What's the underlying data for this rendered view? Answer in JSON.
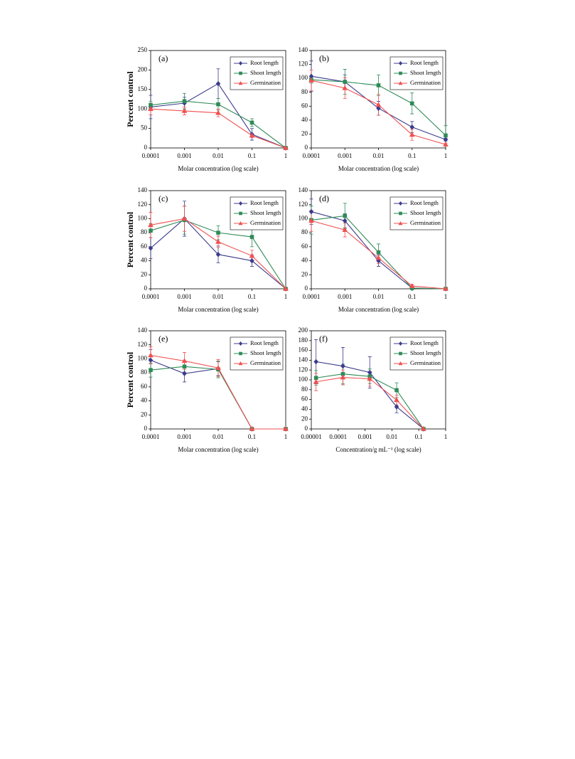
{
  "chart_data": [
    {
      "type": "line",
      "panel_label": "(a)",
      "ylabel": "Percent control",
      "xlabel": "Molar concentration (log scale)",
      "log_x": true,
      "legend": "upper right",
      "x": [
        0.0001,
        0.001,
        0.01,
        0.1,
        1
      ],
      "xlim": [
        0.0001,
        1
      ],
      "xticks": [
        0.0001,
        0.001,
        0.01,
        0.1,
        1
      ],
      "ylim": [
        0,
        250
      ],
      "yticks": [
        0,
        50,
        100,
        150,
        200,
        250
      ],
      "series": [
        {
          "name": "Root length",
          "color": "#3c3c8c",
          "marker": "diamond",
          "values": [
            105,
            115,
            165,
            35,
            0
          ],
          "errors": [
            30,
            15,
            38,
            15,
            0
          ]
        },
        {
          "name": "Shoot length",
          "color": "#2e8b57",
          "marker": "square",
          "values": [
            110,
            120,
            112,
            65,
            0
          ],
          "errors": [
            10,
            20,
            15,
            10,
            0
          ]
        },
        {
          "name": "Germination",
          "color": "#f05050",
          "marker": "triangle",
          "values": [
            100,
            95,
            90,
            32,
            0
          ],
          "errors": [
            15,
            10,
            10,
            5,
            0
          ]
        }
      ]
    },
    {
      "type": "line",
      "panel_label": "(b)",
      "xlabel": "Molar concentration (log scale)",
      "log_x": true,
      "legend": "upper right",
      "x": [
        0.0001,
        0.001,
        0.01,
        0.1,
        1
      ],
      "xlim": [
        0.0001,
        1
      ],
      "xticks": [
        0.0001,
        0.001,
        0.01,
        0.1,
        1
      ],
      "ylim": [
        0,
        140
      ],
      "yticks": [
        0,
        20,
        40,
        60,
        80,
        100,
        120,
        140
      ],
      "series": [
        {
          "name": "Root length",
          "color": "#3c3c8c",
          "marker": "diamond",
          "values": [
            103,
            95,
            57,
            30,
            12
          ],
          "errors": [
            22,
            10,
            10,
            8,
            2
          ]
        },
        {
          "name": "Shoot length",
          "color": "#2e8b57",
          "marker": "square",
          "values": [
            98,
            95,
            90,
            64,
            18
          ],
          "errors": [
            5,
            18,
            15,
            15,
            14
          ]
        },
        {
          "name": "Germination",
          "color": "#f05050",
          "marker": "triangle",
          "values": [
            97,
            86,
            62,
            19,
            5
          ],
          "errors": [
            15,
            15,
            15,
            8,
            2
          ]
        }
      ]
    },
    {
      "type": "line",
      "panel_label": "(c)",
      "ylabel": "Percent control",
      "xlabel": "Molar concentration (log scale)",
      "log_x": true,
      "legend": "upper right",
      "x": [
        0.0001,
        0.001,
        0.01,
        0.1,
        1
      ],
      "xlim": [
        0.0001,
        1
      ],
      "xticks": [
        0.0001,
        0.001,
        0.01,
        0.1,
        1
      ],
      "ylim": [
        0,
        140
      ],
      "yticks": [
        0,
        20,
        40,
        60,
        80,
        100,
        120,
        140
      ],
      "series": [
        {
          "name": "Root length",
          "color": "#3c3c8c",
          "marker": "diamond",
          "values": [
            58,
            100,
            49,
            40,
            0
          ],
          "errors": [
            15,
            25,
            12,
            8,
            0
          ]
        },
        {
          "name": "Shoot length",
          "color": "#2e8b57",
          "marker": "square",
          "values": [
            83,
            98,
            80,
            74,
            0
          ],
          "errors": [
            10,
            20,
            10,
            14,
            0
          ]
        },
        {
          "name": "Germination",
          "color": "#f05050",
          "marker": "triangle",
          "values": [
            91,
            100,
            67,
            47,
            0
          ],
          "errors": [
            18,
            18,
            8,
            8,
            0
          ]
        }
      ]
    },
    {
      "type": "line",
      "panel_label": "(d)",
      "xlabel": "Molar concentration (log scale)",
      "log_x": true,
      "legend": "upper right",
      "x": [
        0.0001,
        0.001,
        0.01,
        0.1,
        1
      ],
      "xlim": [
        0.0001,
        1
      ],
      "xticks": [
        0.0001,
        0.001,
        0.01,
        0.1,
        1
      ],
      "ylim": [
        0,
        140
      ],
      "yticks": [
        0,
        20,
        40,
        60,
        80,
        100,
        120,
        140
      ],
      "series": [
        {
          "name": "Root length",
          "color": "#3c3c8c",
          "marker": "diamond",
          "values": [
            110,
            97,
            40,
            1,
            0
          ],
          "errors": [
            18,
            10,
            8,
            1,
            0
          ]
        },
        {
          "name": "Shoot length",
          "color": "#2e8b57",
          "marker": "square",
          "values": [
            98,
            104,
            52,
            1,
            0
          ],
          "errors": [
            20,
            18,
            12,
            1,
            0
          ]
        },
        {
          "name": "Germination",
          "color": "#f05050",
          "marker": "triangle",
          "values": [
            97,
            84,
            44,
            4,
            0
          ],
          "errors": [
            15,
            10,
            8,
            2,
            0
          ]
        }
      ]
    },
    {
      "type": "line",
      "panel_label": "(e)",
      "ylabel": "Percent control",
      "xlabel": "Molar concentration (log scale)",
      "log_x": true,
      "legend": "upper right",
      "x": [
        0.0001,
        0.001,
        0.01,
        0.1,
        1
      ],
      "xlim": [
        0.0001,
        1
      ],
      "xticks": [
        0.0001,
        0.001,
        0.01,
        0.1,
        1
      ],
      "ylim": [
        0,
        140
      ],
      "yticks": [
        0,
        20,
        40,
        60,
        80,
        100,
        120,
        140
      ],
      "series": [
        {
          "name": "Root length",
          "color": "#3c3c8c",
          "marker": "diamond",
          "values": [
            98,
            79,
            86,
            0,
            0
          ],
          "errors": [
            15,
            12,
            10,
            0,
            0
          ]
        },
        {
          "name": "Shoot length",
          "color": "#2e8b57",
          "marker": "square",
          "values": [
            84,
            89,
            85,
            0,
            0
          ],
          "errors": [
            10,
            8,
            12,
            0,
            0
          ]
        },
        {
          "name": "Germination",
          "color": "#f05050",
          "marker": "triangle",
          "values": [
            105,
            97,
            87,
            0,
            0
          ],
          "errors": [
            12,
            12,
            12,
            0,
            0
          ]
        }
      ]
    },
    {
      "type": "line",
      "panel_label": "(f)",
      "xlabel": "Concentration/g mL⁻¹ (log scale)",
      "log_x": true,
      "legend": "upper right",
      "x": [
        1.5e-05,
        0.00015,
        0.0015,
        0.015,
        0.15
      ],
      "xlim": [
        1e-05,
        1
      ],
      "xticks": [
        1e-05,
        0.0001,
        0.001,
        0.01,
        0.1,
        1
      ],
      "ylim": [
        0,
        200
      ],
      "yticks": [
        0,
        20,
        40,
        60,
        80,
        100,
        120,
        140,
        160,
        180,
        200
      ],
      "series": [
        {
          "name": "Root length",
          "color": "#3c3c8c",
          "marker": "diamond",
          "values": [
            137,
            128,
            115,
            45,
            0
          ],
          "errors": [
            45,
            38,
            32,
            12,
            0
          ]
        },
        {
          "name": "Shoot length",
          "color": "#2e8b57",
          "marker": "square",
          "values": [
            104,
            112,
            107,
            79,
            0
          ],
          "errors": [
            15,
            20,
            15,
            15,
            0
          ]
        },
        {
          "name": "Germination",
          "color": "#f05050",
          "marker": "triangle",
          "values": [
            96,
            105,
            102,
            59,
            0
          ],
          "errors": [
            18,
            15,
            15,
            10,
            0
          ]
        }
      ]
    }
  ]
}
